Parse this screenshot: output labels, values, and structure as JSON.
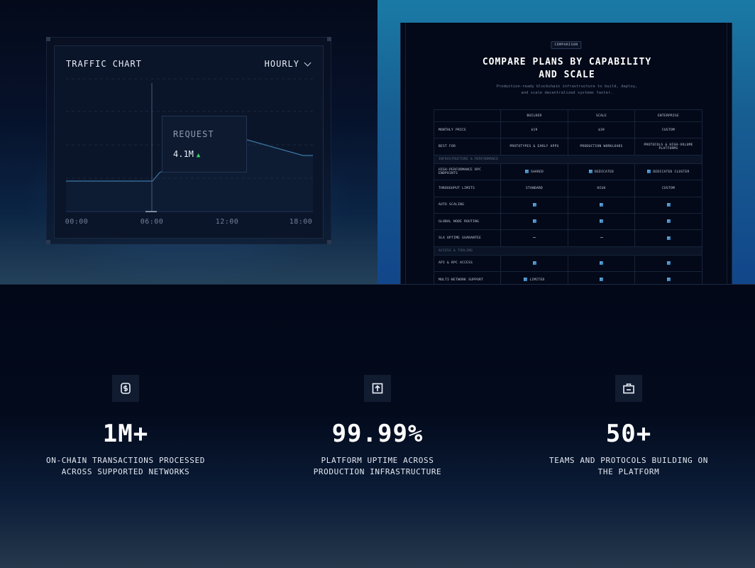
{
  "traffic_card": {
    "title": "TRAFFIC CHART",
    "range_select": "HOURLY",
    "tooltip": {
      "label": "REQUEST",
      "value": "4.1M",
      "trend": "▲"
    },
    "x_ticks": [
      "00:00",
      "06:00",
      "12:00",
      "18:00"
    ],
    "chart_data": {
      "type": "line",
      "x": [
        "00:00",
        "06:00",
        "12:00",
        "18:00"
      ],
      "series": [
        {
          "values": [
            null,
            null,
            null,
            null
          ]
        }
      ]
    }
  },
  "comparison": {
    "badge": "COMPARISON",
    "title_line1": "COMPARE PLANS BY CAPABILITY",
    "title_line2": "AND SCALE",
    "subtitle_line1": "Production-ready blockchain infrastructure to build, deploy,",
    "subtitle_line2": "and scale decentralized systems faster.",
    "columns": [
      "",
      "BUILDER",
      "SCALE",
      "ENTERPRISE"
    ],
    "rows": [
      {
        "type": "row",
        "label": "MONTHLY PRICE",
        "cells": [
          {
            "text": "$19"
          },
          {
            "text": "$39"
          },
          {
            "text": "CUSTOM"
          }
        ]
      },
      {
        "type": "row",
        "label": "BEST FOR",
        "cells": [
          {
            "text": "PROTOTYPES & EARLY APPS"
          },
          {
            "text": "PRODUCTION WORKLOADS"
          },
          {
            "text": "PROTOCOLS & HIGH-VOLUME PLATFORMS"
          }
        ]
      },
      {
        "type": "section",
        "label": "INFRASTRUCTURE & PERFORMANCE"
      },
      {
        "type": "row",
        "label": "HIGH-PERFORMANCE RPC ENDPOINTS",
        "cells": [
          {
            "icon": "check",
            "text": "SHARED"
          },
          {
            "icon": "check",
            "text": "DEDICATED"
          },
          {
            "icon": "check",
            "text": "DEDICATED CLUSTER"
          }
        ]
      },
      {
        "type": "row",
        "label": "THROUGHPUT LIMITS",
        "cells": [
          {
            "text": "STANDARD"
          },
          {
            "text": "HIGH"
          },
          {
            "text": "CUSTOM"
          }
        ]
      },
      {
        "type": "row",
        "label": "AUTO SCALING",
        "cells": [
          {
            "icon": "check"
          },
          {
            "icon": "check"
          },
          {
            "icon": "check"
          }
        ]
      },
      {
        "type": "row",
        "label": "GLOBAL NODE ROUTING",
        "cells": [
          {
            "icon": "check"
          },
          {
            "icon": "check"
          },
          {
            "icon": "check"
          }
        ]
      },
      {
        "type": "row",
        "label": "SLA UPTIME GUARANTEE",
        "cells": [
          {
            "icon": "dash"
          },
          {
            "icon": "dash"
          },
          {
            "icon": "check"
          }
        ]
      },
      {
        "type": "section",
        "label": "ACCESS & TOOLING"
      },
      {
        "type": "row",
        "label": "API & RPC ACCESS",
        "cells": [
          {
            "icon": "check"
          },
          {
            "icon": "check"
          },
          {
            "icon": "check"
          }
        ]
      },
      {
        "type": "row",
        "label": "MULTI-NETWORK SUPPORT",
        "cells": [
          {
            "icon": "check",
            "text": "LIMITED"
          },
          {
            "icon": "check"
          },
          {
            "icon": "check"
          }
        ]
      }
    ]
  },
  "stats": [
    {
      "icon": "dollar-coin-icon",
      "value": "1M+",
      "label_line1": "ON-CHAIN TRANSACTIONS PROCESSED",
      "label_line2": "ACROSS SUPPORTED NETWORKS"
    },
    {
      "icon": "upload-box-icon",
      "value": "99.99%",
      "label_line1": "PLATFORM UPTIME ACROSS",
      "label_line2": "PRODUCTION INFRASTRUCTURE"
    },
    {
      "icon": "briefcase-icon",
      "value": "50+",
      "label_line1": "TEAMS AND PROTOCOLS BUILDING ON",
      "label_line2": "THE PLATFORM"
    }
  ]
}
